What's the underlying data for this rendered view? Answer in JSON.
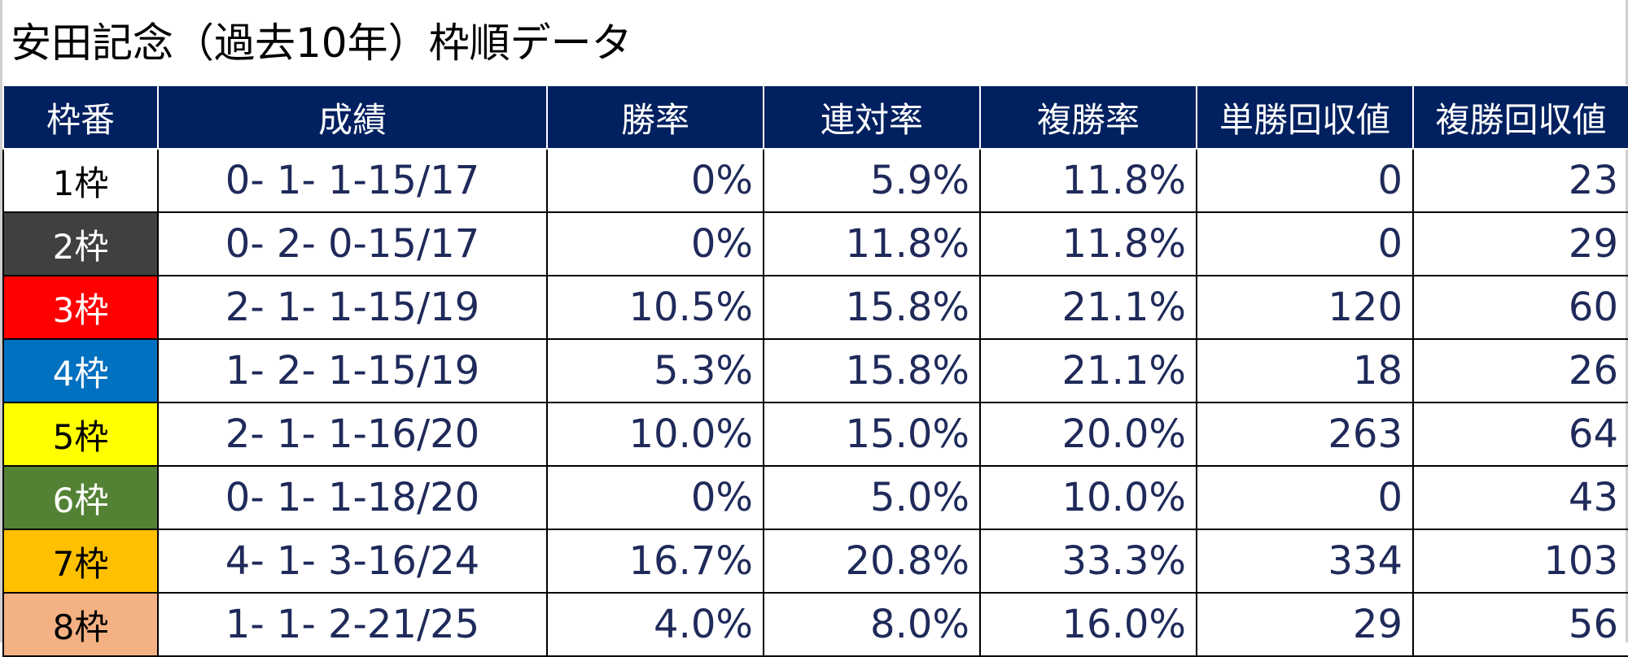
{
  "title": "安田記念（過去10年）枠順データ",
  "columns": [
    "枠番",
    "成績",
    "勝率",
    "連対率",
    "複勝率",
    "単勝回収値",
    "複勝回収値"
  ],
  "rows": [
    {
      "waku": "1枠",
      "record": "0- 1- 1-15/17",
      "win_rate": "0%",
      "rentai_rate": "5.9%",
      "place_rate": "11.8%",
      "win_return": "0",
      "place_return": "23",
      "bg": "#ffffff",
      "fg": "#000000"
    },
    {
      "waku": "2枠",
      "record": "0- 2- 0-15/17",
      "win_rate": "0%",
      "rentai_rate": "11.8%",
      "place_rate": "11.8%",
      "win_return": "0",
      "place_return": "29",
      "bg": "#404040",
      "fg": "#ffffff"
    },
    {
      "waku": "3枠",
      "record": "2- 1- 1-15/19",
      "win_rate": "10.5%",
      "rentai_rate": "15.8%",
      "place_rate": "21.1%",
      "win_return": "120",
      "place_return": "60",
      "bg": "#ff0000",
      "fg": "#ffffff"
    },
    {
      "waku": "4枠",
      "record": "1- 2- 1-15/19",
      "win_rate": "5.3%",
      "rentai_rate": "15.8%",
      "place_rate": "21.1%",
      "win_return": "18",
      "place_return": "26",
      "bg": "#0070c0",
      "fg": "#ffffff"
    },
    {
      "waku": "5枠",
      "record": "2- 1- 1-16/20",
      "win_rate": "10.0%",
      "rentai_rate": "15.0%",
      "place_rate": "20.0%",
      "win_return": "263",
      "place_return": "64",
      "bg": "#ffff00",
      "fg": "#000000"
    },
    {
      "waku": "6枠",
      "record": "0- 1- 1-18/20",
      "win_rate": "0%",
      "rentai_rate": "5.0%",
      "place_rate": "10.0%",
      "win_return": "0",
      "place_return": "43",
      "bg": "#548235",
      "fg": "#ffffff"
    },
    {
      "waku": "7枠",
      "record": "4- 1- 3-16/24",
      "win_rate": "16.7%",
      "rentai_rate": "20.8%",
      "place_rate": "33.3%",
      "win_return": "334",
      "place_return": "103",
      "bg": "#ffc000",
      "fg": "#000000"
    },
    {
      "waku": "8枠",
      "record": "1- 1- 2-21/25",
      "win_rate": "4.0%",
      "rentai_rate": "8.0%",
      "place_rate": "16.0%",
      "win_return": "29",
      "place_return": "56",
      "bg": "#f4b183",
      "fg": "#000000"
    }
  ]
}
